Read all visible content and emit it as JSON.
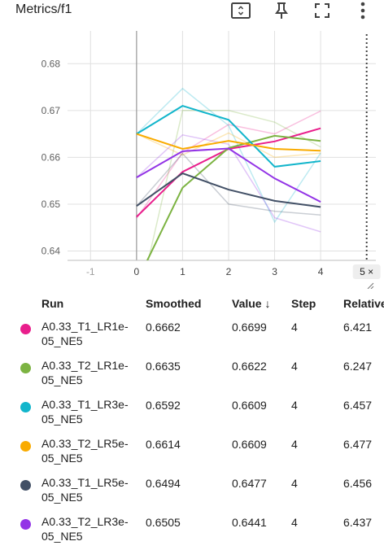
{
  "header": {
    "title": "Metrics/f1",
    "icons": [
      "fit-screen-icon",
      "pin-icon",
      "fullscreen-icon",
      "more-vert-icon"
    ]
  },
  "chart_data": {
    "type": "line",
    "ylim": [
      0.638,
      0.687
    ],
    "xlim": [
      -1.5,
      5.2
    ],
    "yticks": [
      0.64,
      0.65,
      0.66,
      0.67,
      0.68
    ],
    "ytick_labels": [
      "0.64",
      "0.65",
      "0.66",
      "0.67",
      "0.68"
    ],
    "xticks": [
      -1,
      0,
      1,
      2,
      3,
      4
    ],
    "xtick_labels": [
      "-1",
      "0",
      "1",
      "2",
      "3",
      "4"
    ],
    "x_badge": "5 ×",
    "grid": true,
    "x": [
      0,
      1,
      2,
      3,
      4
    ],
    "series": [
      {
        "name": "A0.33_T1_LR1e-05_NE5",
        "color": "#e91e8c",
        "values": [
          0.6473,
          0.6569,
          0.6618,
          0.6634,
          0.6662
        ],
        "raw": [
          0.647,
          0.661,
          0.667,
          0.665,
          0.6699
        ]
      },
      {
        "name": "A0.33_T2_LR1e-05_NE5",
        "color": "#7cb342",
        "values": [
          0.6333,
          0.6535,
          0.662,
          0.6646,
          0.6635
        ],
        "raw": [
          0.627,
          0.67,
          0.67,
          0.6675,
          0.6622
        ]
      },
      {
        "name": "A0.33_T1_LR3e-05_NE5",
        "color": "#12b5cb",
        "values": [
          0.665,
          0.671,
          0.668,
          0.658,
          0.6592
        ],
        "raw": [
          0.665,
          0.6747,
          0.6668,
          0.6462,
          0.6609
        ]
      },
      {
        "name": "A0.33_T2_LR5e-05_NE5",
        "color": "#f9ab00",
        "values": [
          0.665,
          0.6618,
          0.6635,
          0.6618,
          0.6614
        ],
        "raw": [
          0.665,
          0.6605,
          0.6652,
          0.66,
          0.6609
        ]
      },
      {
        "name": "A0.33_T1_LR5e-05_NE5",
        "color": "#425066",
        "values": [
          0.6496,
          0.6566,
          0.6531,
          0.6507,
          0.6494
        ],
        "raw": [
          0.6496,
          0.6608,
          0.65,
          0.6485,
          0.6477
        ]
      },
      {
        "name": "A0.33_T2_LR3e-05_NE5",
        "color": "#9334e6",
        "values": [
          0.6557,
          0.6613,
          0.6619,
          0.6555,
          0.6505
        ],
        "raw": [
          0.6557,
          0.6648,
          0.6628,
          0.6471,
          0.6441
        ]
      }
    ]
  },
  "table": {
    "columns": {
      "run": "Run",
      "smoothed": "Smoothed",
      "value": "Value",
      "sort_icon": "↓",
      "step": "Step",
      "relative": "Relative"
    },
    "rows": [
      {
        "run": "A0.33_T1_LR1e-05_NE5",
        "smoothed": "0.6662",
        "value": "0.6699",
        "step": "4",
        "relative": "6.421",
        "color": "#e91e8c"
      },
      {
        "run": "A0.33_T2_LR1e-05_NE5",
        "smoothed": "0.6635",
        "value": "0.6622",
        "step": "4",
        "relative": "6.247",
        "color": "#7cb342"
      },
      {
        "run": "A0.33_T1_LR3e-05_NE5",
        "smoothed": "0.6592",
        "value": "0.6609",
        "step": "4",
        "relative": "6.457",
        "color": "#12b5cb"
      },
      {
        "run": "A0.33_T2_LR5e-05_NE5",
        "smoothed": "0.6614",
        "value": "0.6609",
        "step": "4",
        "relative": "6.477",
        "color": "#f9ab00"
      },
      {
        "run": "A0.33_T1_LR5e-05_NE5",
        "smoothed": "0.6494",
        "value": "0.6477",
        "step": "4",
        "relative": "6.456",
        "color": "#425066"
      },
      {
        "run": "A0.33_T2_LR3e-05_NE5",
        "smoothed": "0.6505",
        "value": "0.6441",
        "step": "4",
        "relative": "6.437",
        "color": "#9334e6"
      }
    ]
  }
}
